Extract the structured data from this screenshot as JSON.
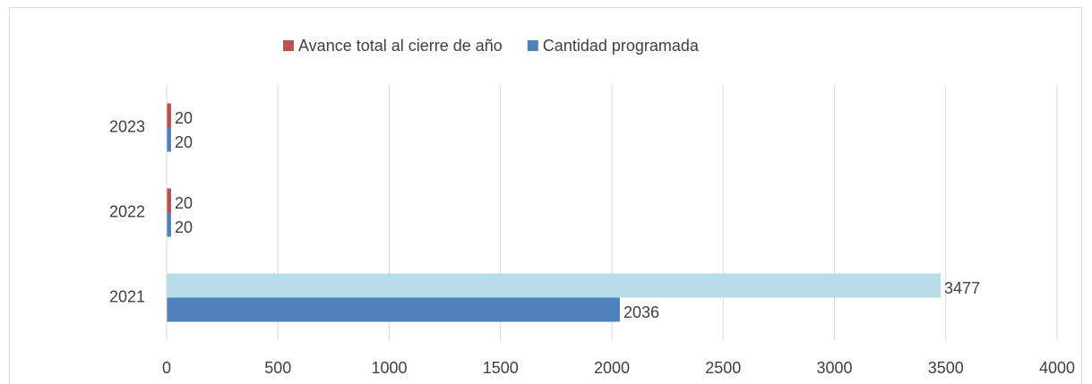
{
  "chart_data": {
    "type": "hbar",
    "categories": [
      "2021",
      "2022",
      "2023"
    ],
    "series": [
      {
        "name": "Avance total al cierre de año",
        "color": "#c0504d",
        "colors": [
          "#b7dde8",
          "#c0504d",
          "#c0504d"
        ],
        "values": [
          3477,
          20,
          20
        ]
      },
      {
        "name": "Cantidad programada",
        "color": "#4f81bd",
        "values": [
          2036,
          20,
          20
        ]
      }
    ],
    "xlim": [
      0,
      4000
    ],
    "xticks": [
      0,
      500,
      1000,
      1500,
      2000,
      2500,
      3000,
      3500,
      4000
    ],
    "grid": true,
    "legend": "top"
  }
}
